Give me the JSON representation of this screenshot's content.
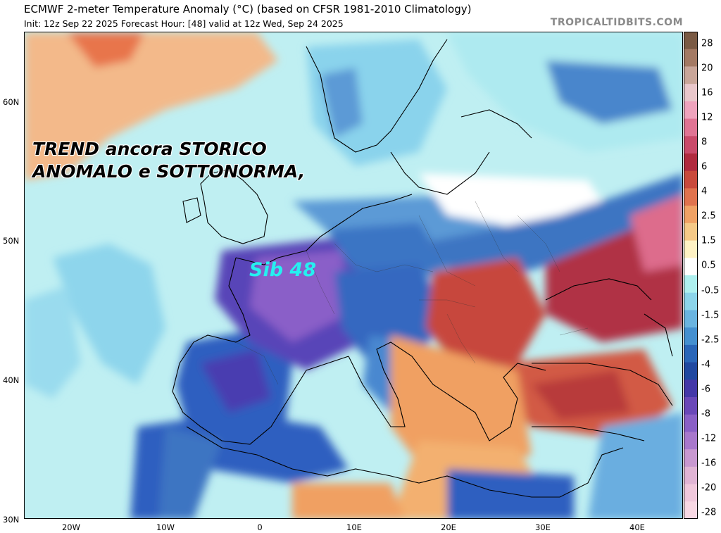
{
  "header": {
    "title": "ECMWF 2-meter Temperature Anomaly (°C) (based on CFSR 1981-2010 Climatology)",
    "subtitle": "Init: 12z Sep 22 2025   Forecast Hour: [48]   valid at 12z Wed, Sep 24 2025",
    "brand": "TROPICALTIDBITS.COM"
  },
  "map": {
    "lat_labels": [
      "60N",
      "50N",
      "40N",
      "30N"
    ],
    "lon_labels": [
      "20W",
      "10W",
      "0",
      "10E",
      "20E",
      "30E",
      "40E"
    ],
    "overlay": {
      "line1": "TREND ancora STORICO",
      "line2": "ANOMALO e SOTTONORMA,",
      "annotation": "Sib 48"
    }
  },
  "colorbar": {
    "labels": [
      "28",
      "20",
      "16",
      "12",
      "8",
      "6",
      "4",
      "2.5",
      "1.5",
      "0.5",
      "-0.5",
      "-1.5",
      "-2.5",
      "-4",
      "-6",
      "-8",
      "-12",
      "-16",
      "-20",
      "-28"
    ],
    "colors": [
      "#7a5a44",
      "#a47a64",
      "#c9a699",
      "#e9c7cb",
      "#efa3bd",
      "#e07494",
      "#c94a6a",
      "#b02a3e",
      "#c94a3c",
      "#e0734e",
      "#f0a265",
      "#f5c987",
      "#fff2c4",
      "#ffffff",
      "#aef0ef",
      "#8cd4ea",
      "#6ab4e0",
      "#4590d0",
      "#2a66b8",
      "#2048a0",
      "#4438a8",
      "#6a48b8",
      "#8a60c6",
      "#a878cc",
      "#c898d0",
      "#e0b4d4",
      "#f0c8dc",
      "#f8d8e4"
    ]
  }
}
